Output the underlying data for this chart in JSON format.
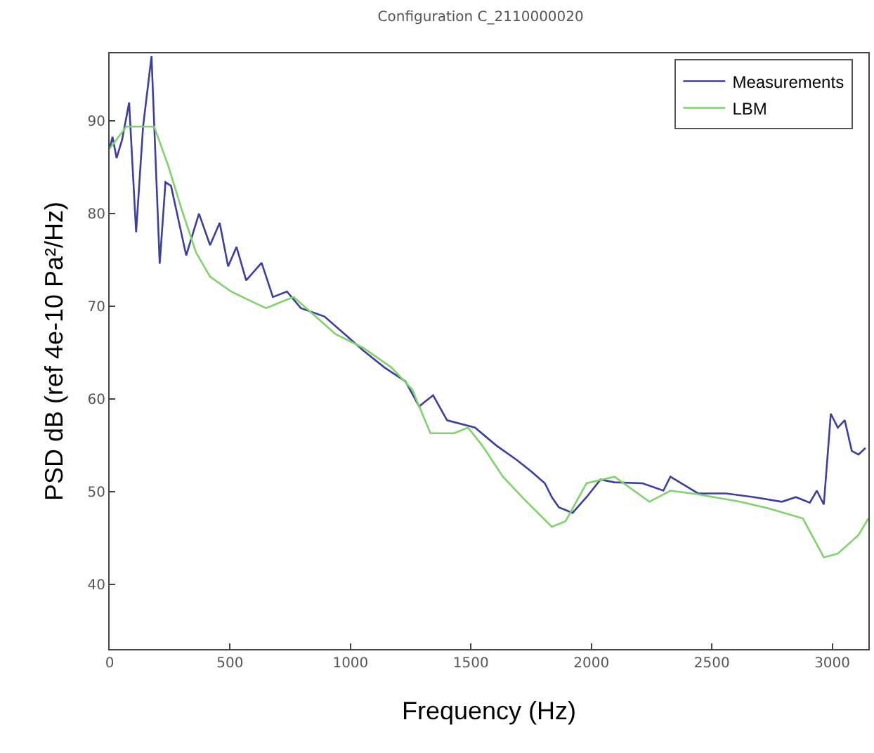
{
  "chart_data": {
    "type": "line",
    "title": "Configuration C_2110000020",
    "xlabel": "Frequency (Hz)",
    "ylabel": "PSD dB (ref 4e-10 Pa²/Hz)",
    "xlim": [
      0,
      3150
    ],
    "ylim": [
      33,
      97.3
    ],
    "xticks": [
      0,
      500,
      1000,
      1500,
      2000,
      2500,
      3000
    ],
    "yticks": [
      40,
      50,
      60,
      70,
      80,
      90
    ],
    "grid": false,
    "legend": "top right",
    "marker": "none",
    "line_style": "solid",
    "series": [
      {
        "name": "Measurements",
        "color": "#3a3fa0",
        "x": [
          0,
          12,
          29,
          52,
          81,
          110,
          139,
          174,
          208,
          232,
          255,
          318,
          371,
          417,
          457,
          492,
          527,
          567,
          631,
          678,
          736,
          794,
          892,
          967,
          1054,
          1141,
          1228,
          1285,
          1343,
          1401,
          1517,
          1604,
          1691,
          1749,
          1807,
          1836,
          1865,
          1922,
          1980,
          2038,
          2096,
          2212,
          2299,
          2328,
          2443,
          2559,
          2675,
          2791,
          2849,
          2907,
          2936,
          2965,
          2994,
          3023,
          3052,
          3081,
          3109,
          3138
        ],
        "values": [
          87,
          88.3,
          86,
          88,
          92,
          78,
          89.4,
          97,
          74.6,
          83.4,
          83,
          75.5,
          80,
          76.6,
          79,
          74.3,
          76.4,
          72.8,
          74.7,
          71,
          71.6,
          69.8,
          68.9,
          67.2,
          65.2,
          63.4,
          61.9,
          59.2,
          60.4,
          57.7,
          56.9,
          55,
          53.4,
          52.2,
          50.9,
          49.4,
          48.3,
          47.7,
          49.4,
          51.3,
          51,
          50.9,
          50.1,
          51.6,
          49.8,
          49.8,
          49.4,
          48.9,
          49.4,
          48.8,
          50.1,
          48.6,
          58.4,
          56.9,
          57.7,
          54.4,
          54,
          54.7
        ]
      },
      {
        "name": "LBM",
        "color": "#7fd36a",
        "x": [
          0,
          69,
          185,
          243,
          301,
          359,
          417,
          504,
          591,
          649,
          706,
          764,
          851,
          938,
          1054,
          1170,
          1257,
          1285,
          1332,
          1430,
          1488,
          1546,
          1633,
          1720,
          1836,
          1893,
          1980,
          2096,
          2241,
          2328,
          2443,
          2617,
          2733,
          2878,
          2965,
          3023,
          3109,
          3150
        ],
        "values": [
          87,
          89.4,
          89.4,
          85.2,
          80.3,
          75.8,
          73.2,
          71.6,
          70.5,
          69.8,
          70.4,
          71,
          69,
          67,
          65.5,
          63.4,
          61,
          59.2,
          56.3,
          56.3,
          56.9,
          55,
          51.6,
          49.2,
          46.2,
          46.8,
          50.9,
          51.6,
          48.9,
          50.1,
          49.7,
          48.9,
          48.2,
          47.1,
          42.9,
          43.3,
          45.3,
          47.1
        ]
      }
    ]
  }
}
